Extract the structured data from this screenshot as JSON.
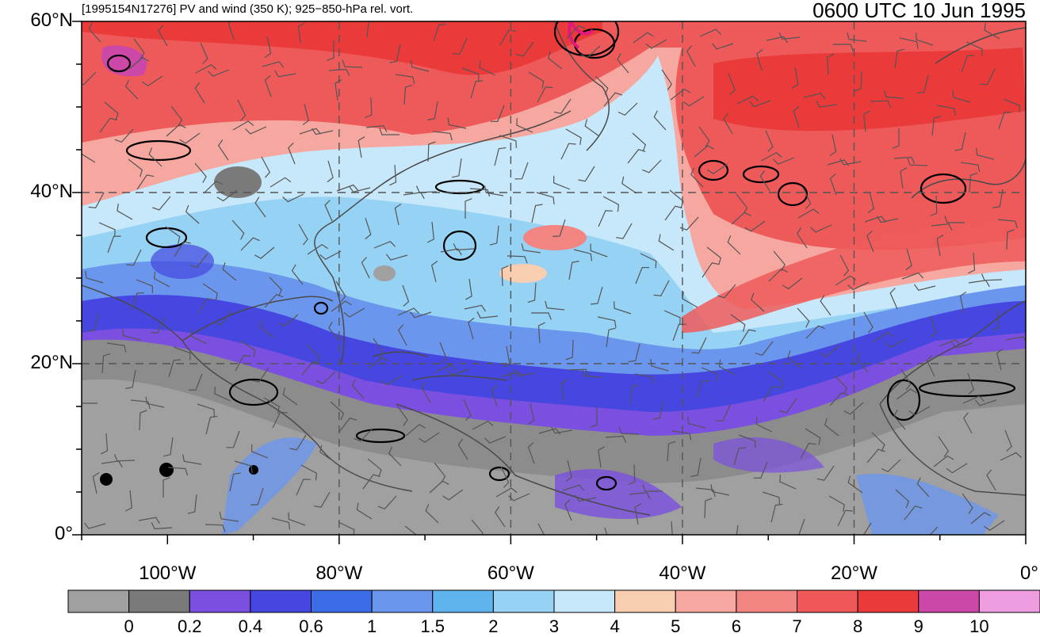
{
  "header": {
    "title_left": "[1995154N17276] PV and wind (350 K); 925−850-hPa rel. vort.",
    "title_right": "0600 UTC 10 Jun 1995"
  },
  "map": {
    "lon_range": [
      -110,
      0
    ],
    "lat_range": [
      0,
      60
    ],
    "lat_ticks": [
      {
        "value": 60,
        "label": "60°N"
      },
      {
        "value": 40,
        "label": "40°N"
      },
      {
        "value": 20,
        "label": "20°N"
      },
      {
        "value": 0,
        "label": "0°"
      }
    ],
    "lon_ticks": [
      {
        "value": -100,
        "label": "100°W"
      },
      {
        "value": -80,
        "label": "80°W"
      },
      {
        "value": -60,
        "label": "60°W"
      },
      {
        "value": -40,
        "label": "40°W"
      },
      {
        "value": -20,
        "label": "20°W"
      },
      {
        "value": 0,
        "label": "0°"
      }
    ],
    "gridlines": "dashed",
    "gridline_lats": [
      20,
      40
    ],
    "gridline_lons": [
      -80,
      -60,
      -40,
      -20
    ],
    "storm_marker_color": "#e0197d"
  },
  "colorbar": {
    "colors": [
      "#a0a0a0",
      "#7a7a7a",
      "#7b4fe0",
      "#4646e0",
      "#3c6ce8",
      "#6a96ee",
      "#5fb4ee",
      "#96d2f4",
      "#c6e8fa",
      "#f8cdb0",
      "#f6a8a0",
      "#f28482",
      "#ee5858",
      "#ea3a3a",
      "#cc48a8",
      "#ee9ee0"
    ],
    "labels": [
      "0",
      "0.2",
      "0.4",
      "0.6",
      "1",
      "1.5",
      "2",
      "3",
      "4",
      "5",
      "6",
      "7",
      "8",
      "9",
      "10"
    ]
  }
}
